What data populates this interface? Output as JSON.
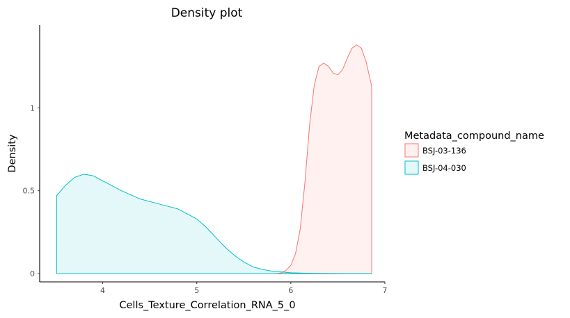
{
  "chart_data": {
    "type": "area",
    "title": "Density plot",
    "xlabel": "Cells_Texture_Correlation_RNA_5_0",
    "ylabel": "Density",
    "xlim": [
      3.33,
      7.0
    ],
    "ylim": [
      -0.05,
      1.5
    ],
    "x_ticks": [
      4,
      5,
      6,
      7
    ],
    "y_ticks": [
      0,
      0.5,
      1
    ],
    "x_tick_labels": [
      "4",
      "5",
      "6",
      "7"
    ],
    "y_tick_labels": [
      "0",
      "0.5",
      "1"
    ],
    "grid": false,
    "legend": {
      "title": "Metadata_compound_name",
      "position": "right"
    },
    "series": [
      {
        "name": "BSJ-03-136",
        "color": "#F8766D",
        "x": [
          5.85,
          5.9,
          5.95,
          6.0,
          6.05,
          6.1,
          6.15,
          6.2,
          6.25,
          6.3,
          6.35,
          6.4,
          6.45,
          6.5,
          6.55,
          6.6,
          6.65,
          6.7,
          6.75,
          6.8,
          6.86
        ],
        "y": [
          0.0,
          0.005,
          0.02,
          0.05,
          0.12,
          0.27,
          0.55,
          0.9,
          1.14,
          1.25,
          1.27,
          1.25,
          1.21,
          1.2,
          1.23,
          1.3,
          1.36,
          1.38,
          1.36,
          1.28,
          1.13
        ]
      },
      {
        "name": "BSJ-04-030",
        "color": "#00BFC4",
        "x": [
          3.51,
          3.6,
          3.7,
          3.8,
          3.9,
          4.0,
          4.2,
          4.4,
          4.6,
          4.8,
          5.0,
          5.1,
          5.2,
          5.3,
          5.4,
          5.5,
          5.6,
          5.7,
          5.8,
          5.9,
          6.0,
          6.2,
          6.4,
          6.6,
          6.86
        ],
        "y": [
          0.47,
          0.53,
          0.58,
          0.6,
          0.59,
          0.56,
          0.5,
          0.45,
          0.42,
          0.39,
          0.33,
          0.28,
          0.22,
          0.16,
          0.11,
          0.07,
          0.04,
          0.025,
          0.015,
          0.01,
          0.005,
          0.002,
          0.001,
          0.0,
          0.0
        ]
      }
    ]
  }
}
